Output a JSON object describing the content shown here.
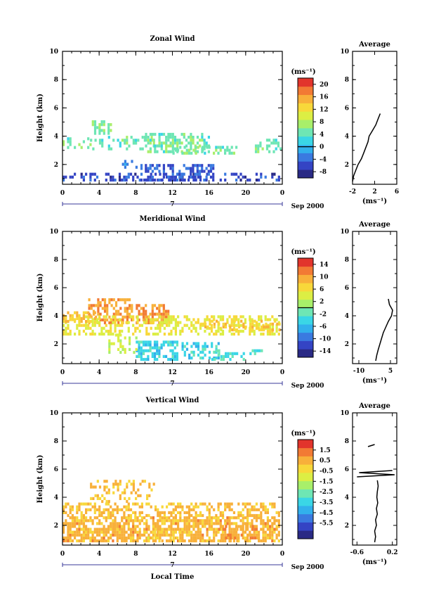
{
  "date_label": "Sep 2000",
  "day_label": "7",
  "xlabel_bottom": "Local Time",
  "avg_title": "Average",
  "unit_label": "(ms⁻¹)",
  "palette": [
    "#2a2a85",
    "#3444c4",
    "#3a7ae0",
    "#32b0ec",
    "#3ad6e6",
    "#6ee6b4",
    "#a8ef6a",
    "#dcee44",
    "#f8d83a",
    "#f8b03a",
    "#f27a34",
    "#e2342c"
  ],
  "chart_data": [
    {
      "type": "heatmap",
      "title": "Zonal Wind",
      "ylabel": "Height (km)",
      "xlim": [
        0,
        24
      ],
      "ylim": [
        0.6,
        10
      ],
      "xticks": [
        "0",
        "4",
        "8",
        "12",
        "16",
        "20",
        "0"
      ],
      "yticks": [
        "2",
        "4",
        "6",
        "8",
        "10"
      ],
      "colorbar": {
        "min": -10,
        "max": 22,
        "labels": [
          "20",
          "16",
          "12",
          "8",
          "4",
          "0",
          "-4",
          "-8"
        ],
        "label_values": [
          20,
          16,
          12,
          8,
          4,
          0,
          -4,
          -8
        ],
        "zero_line": 0
      },
      "clusters": [
        {
          "x": [
            0,
            24
          ],
          "y": [
            0.8,
            1.3
          ],
          "v": -6,
          "d": 0.35
        },
        {
          "x": [
            8.5,
            16.5
          ],
          "y": [
            0.8,
            2.0
          ],
          "v": -5,
          "d": 0.55
        },
        {
          "x": [
            0,
            3
          ],
          "y": [
            3.1,
            3.8
          ],
          "v": 5,
          "d": 0.4
        },
        {
          "x": [
            3.2,
            5.2
          ],
          "y": [
            4.1,
            5.0
          ],
          "v": 6,
          "d": 0.5
        },
        {
          "x": [
            3,
            10
          ],
          "y": [
            3.0,
            4.0
          ],
          "v": 5,
          "d": 0.3
        },
        {
          "x": [
            9,
            16
          ],
          "y": [
            2.8,
            4.2
          ],
          "v": 5,
          "d": 0.55
        },
        {
          "x": [
            12,
            19
          ],
          "y": [
            2.7,
            3.2
          ],
          "v": 5,
          "d": 0.4
        },
        {
          "x": [
            21,
            24
          ],
          "y": [
            2.8,
            3.8
          ],
          "v": 5,
          "d": 0.45
        },
        {
          "x": [
            6,
            8
          ],
          "y": [
            1.5,
            2.2
          ],
          "v": -2,
          "d": 0.3
        }
      ],
      "average": {
        "xlim": [
          -2,
          6
        ],
        "xticks": [
          "-2",
          "2",
          "6"
        ],
        "xtick_values": [
          -2,
          2,
          6
        ],
        "ylim": [
          0.6,
          10
        ],
        "yticks": [
          "2",
          "4",
          "6",
          "8",
          "10"
        ],
        "xlabel": "(ms⁻¹)",
        "profile": [
          [
            -2.0,
            0.8
          ],
          [
            -1.8,
            1.2
          ],
          [
            -1.4,
            1.6
          ],
          [
            -1.0,
            2.0
          ],
          [
            -0.4,
            2.4
          ],
          [
            0.0,
            2.8
          ],
          [
            0.4,
            3.2
          ],
          [
            0.8,
            3.6
          ],
          [
            1.0,
            4.0
          ],
          [
            1.6,
            4.4
          ],
          [
            2.2,
            4.8
          ],
          [
            2.6,
            5.2
          ],
          [
            3.0,
            5.6
          ]
        ]
      }
    },
    {
      "type": "heatmap",
      "title": "Meridional Wind",
      "ylabel": "Height (km)",
      "xlim": [
        0,
        24
      ],
      "ylim": [
        0.6,
        10
      ],
      "xticks": [
        "0",
        "4",
        "8",
        "12",
        "16",
        "20",
        "0"
      ],
      "yticks": [
        "2",
        "4",
        "6",
        "8",
        "10"
      ],
      "colorbar": {
        "min": -16,
        "max": 16,
        "labels": [
          "14",
          "10",
          "6",
          "2",
          "-2",
          "-6",
          "-10",
          "-14"
        ],
        "label_values": [
          14,
          10,
          6,
          2,
          -2,
          -6,
          -10,
          -14
        ],
        "zero_line": 0
      },
      "clusters": [
        {
          "x": [
            2.8,
            7.5
          ],
          "y": [
            3.4,
            5.2
          ],
          "v": 10,
          "d": 0.6
        },
        {
          "x": [
            8,
            11.5
          ],
          "y": [
            3.4,
            4.8
          ],
          "v": 11,
          "d": 0.65
        },
        {
          "x": [
            0,
            24
          ],
          "y": [
            2.6,
            3.9
          ],
          "v": 5,
          "d": 0.45
        },
        {
          "x": [
            0,
            4
          ],
          "y": [
            3.5,
            4.2
          ],
          "v": 8,
          "d": 0.4
        },
        {
          "x": [
            8,
            12.5
          ],
          "y": [
            0.8,
            2.2
          ],
          "v": -4,
          "d": 0.6
        },
        {
          "x": [
            13,
            17
          ],
          "y": [
            0.9,
            2.0
          ],
          "v": -4,
          "d": 0.5
        },
        {
          "x": [
            16,
            22
          ],
          "y": [
            0.8,
            1.5
          ],
          "v": -3,
          "d": 0.3
        },
        {
          "x": [
            5,
            8
          ],
          "y": [
            1.3,
            2.6
          ],
          "v": 3,
          "d": 0.3
        },
        {
          "x": [
            15,
            24
          ],
          "y": [
            2.9,
            3.6
          ],
          "v": 7,
          "d": 0.4
        }
      ],
      "average": {
        "xlim": [
          -13,
          8
        ],
        "xticks": [
          "-10",
          "5"
        ],
        "xtick_values": [
          -10,
          5
        ],
        "ylim": [
          0.6,
          10
        ],
        "yticks": [
          "2",
          "4",
          "6",
          "8",
          "10"
        ],
        "xlabel": "(ms⁻¹)",
        "profile": [
          [
            -2.0,
            0.8
          ],
          [
            -1.5,
            1.2
          ],
          [
            -0.8,
            1.6
          ],
          [
            0.0,
            2.0
          ],
          [
            0.8,
            2.4
          ],
          [
            1.6,
            2.8
          ],
          [
            2.8,
            3.2
          ],
          [
            4.0,
            3.6
          ],
          [
            5.5,
            4.0
          ],
          [
            6.0,
            4.4
          ],
          [
            4.5,
            4.8
          ],
          [
            4.0,
            5.2
          ]
        ]
      }
    },
    {
      "type": "heatmap",
      "title": "Vertical Wind",
      "ylabel": "Height (km)",
      "xlim": [
        0,
        24
      ],
      "ylim": [
        0.6,
        10
      ],
      "xticks": [
        "0",
        "4",
        "8",
        "12",
        "16",
        "20",
        "0"
      ],
      "yticks": [
        "2",
        "4",
        "6",
        "8",
        "10"
      ],
      "colorbar": {
        "min": -7,
        "max": 2.5,
        "labels": [
          "1.5",
          "0.5",
          "-0.5",
          "-1.5",
          "-2.5",
          "-3.5",
          "-4.5",
          "-5.5"
        ],
        "label_values": [
          1.5,
          0.5,
          -0.5,
          -1.5,
          -2.5,
          -3.5,
          -4.5,
          -5.5
        ],
        "zero_line": null
      },
      "clusters": [
        {
          "x": [
            0,
            24
          ],
          "y": [
            0.8,
            2.6
          ],
          "v": 0.4,
          "d": 0.7
        },
        {
          "x": [
            0,
            24
          ],
          "y": [
            2.6,
            3.6
          ],
          "v": 0.3,
          "d": 0.45
        },
        {
          "x": [
            3,
            10
          ],
          "y": [
            3.6,
            5.1
          ],
          "v": 0.3,
          "d": 0.3
        },
        {
          "x": [
            9,
            13
          ],
          "y": [
            0.8,
            1.6
          ],
          "v": -0.3,
          "d": 0.3
        },
        {
          "x": [
            17,
            21
          ],
          "y": [
            0.8,
            2.0
          ],
          "v": 0.9,
          "d": 0.3
        },
        {
          "x": [
            11.6,
            12.2
          ],
          "y": [
            9.8,
            10.0
          ],
          "v": 0.2,
          "d": 0.5
        }
      ],
      "average": {
        "xlim": [
          -0.7,
          0.3
        ],
        "xticks": [
          "-0.6",
          "0.2"
        ],
        "xtick_values": [
          -0.6,
          0.2
        ],
        "ylim": [
          0.6,
          10
        ],
        "yticks": [
          "2",
          "4",
          "6",
          "8",
          "10"
        ],
        "xlabel": "(ms⁻¹)",
        "profile": [
          [
            -0.2,
            0.8
          ],
          [
            -0.18,
            1.2
          ],
          [
            -0.2,
            1.6
          ],
          [
            -0.16,
            2.0
          ],
          [
            -0.18,
            2.4
          ],
          [
            -0.14,
            2.8
          ],
          [
            -0.16,
            3.2
          ],
          [
            -0.13,
            3.6
          ],
          [
            -0.15,
            4.0
          ],
          [
            -0.14,
            4.4
          ],
          [
            -0.12,
            4.8
          ],
          [
            -0.14,
            5.2
          ]
        ],
        "profile_upper": [
          [
            -0.6,
            5.45
          ],
          [
            0.25,
            5.6
          ],
          [
            -0.55,
            5.75
          ],
          [
            0.2,
            5.9
          ]
        ],
        "profile_top": [
          [
            -0.35,
            7.6
          ],
          [
            -0.2,
            7.75
          ]
        ]
      }
    }
  ]
}
